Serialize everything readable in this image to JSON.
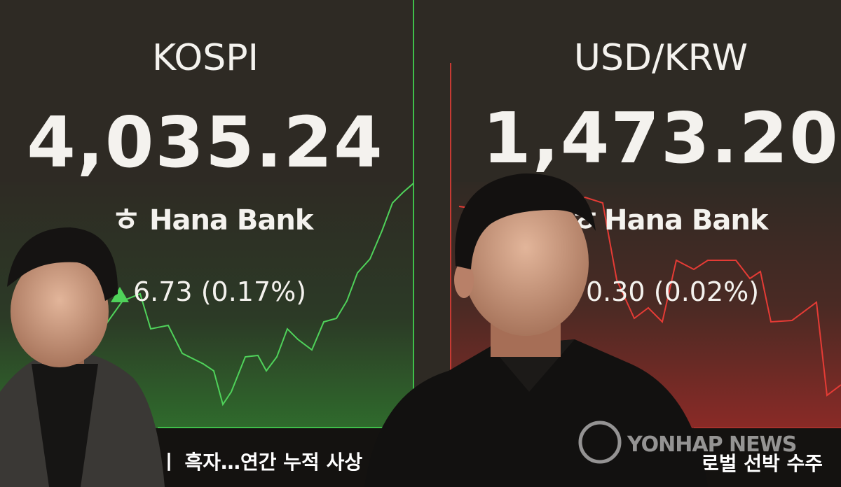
{
  "left_panel": {
    "title": "KOSPI",
    "value": "4,035.24",
    "brand": "Hana Bank",
    "change": "6.73 (0.17%)"
  },
  "right_panel": {
    "title": "USD/KRW",
    "value": "1,473.20",
    "brand": "Hana Bank",
    "change": "0.30 (0.02%)"
  },
  "ticker": {
    "left": "ㅣ 흑자…연간 누적 사상",
    "right": "로벌 선박 수주"
  },
  "watermark": "YONHAP NEWS"
}
